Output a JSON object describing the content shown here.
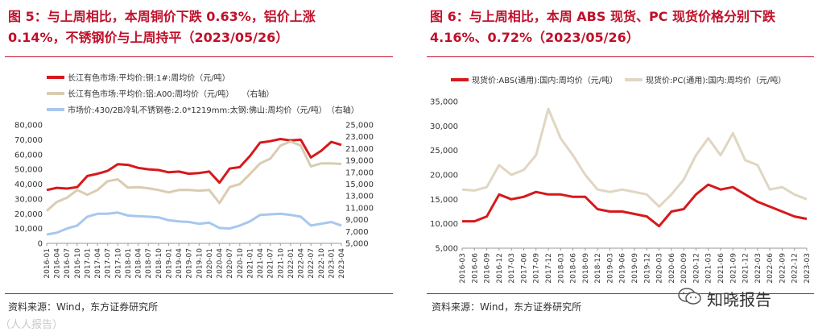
{
  "left": {
    "title_line1": "图 5：与上周相比，本周铜价下跌 0.63%，铝价上涨",
    "title_line2": "0.14%，不锈钢价与上周持平（2023/05/26）",
    "legend": [
      {
        "label": "长江有色市场:平均价:铜:1#:周均价（元/吨）",
        "color": "#d7191c"
      },
      {
        "label": "长江有色市场:平均价:铝:A00:周均价（元/吨）　　（右轴）",
        "color": "#d9ccb2"
      },
      {
        "label": "市场价:430/2B冷轧不锈钢卷:2.0*1219mm:太钢:佛山:周均价（元/吨）　（右轴）",
        "color": "#a7c7ee"
      }
    ],
    "source": "资料来源：Wind，东方证券研究所"
  },
  "right": {
    "title_line1": "图 6：与上周相比，本周 ABS 现货、PC 现货价格分别下跌",
    "title_line2": "4.16%、0.72%（2023/05/26）",
    "legend": [
      {
        "label": "现货价:ABS(通用):国内:周均价（元/吨）",
        "color": "#d7191c"
      },
      {
        "label": "现货价:PC(通用):国内:周均价（元/吨）",
        "color": "#e0d6c2"
      }
    ],
    "source": "资料来源：Wind，东方证券研究所"
  },
  "watermark": "知晓报告",
  "bottom_watermark": "（人人报告）",
  "chart_data": [
    {
      "type": "line",
      "title": "与上周相比，本周铜价下跌 0.63%，铝价上涨0.14%，不锈钢价与上周持平（2023/05/26）",
      "x": [
        "2016-01",
        "2016-04",
        "2016-07",
        "2016-10",
        "2017-01",
        "2017-04",
        "2017-07",
        "2017-10",
        "2018-01",
        "2018-04",
        "2018-07",
        "2018-10",
        "2019-01",
        "2019-04",
        "2019-07",
        "2019-10",
        "2020-01",
        "2020-04",
        "2020-07",
        "2020-10",
        "2021-01",
        "2021-04",
        "2021-07",
        "2021-10",
        "2022-01",
        "2022-04",
        "2022-07",
        "2022-10",
        "2023-01",
        "2023-04"
      ],
      "ylim_left": [
        0,
        80000
      ],
      "yticks_left": [
        "0",
        "10,000",
        "20,000",
        "30,000",
        "40,000",
        "50,000",
        "60,000",
        "70,000",
        "80,000"
      ],
      "ylim_right": [
        5000,
        25000
      ],
      "yticks_right": [
        "5,000",
        "7,000",
        "9,000",
        "11,000",
        "13,000",
        "15,000",
        "17,000",
        "19,000",
        "21,000",
        "23,000",
        "25,000"
      ],
      "series": [
        {
          "name": "长江有色市场:平均价:铜:1#:周均价（元/吨）",
          "axis": "left",
          "color": "#d7191c",
          "values": [
            36000,
            37500,
            37000,
            38000,
            45500,
            47000,
            49000,
            53500,
            53000,
            51000,
            50000,
            49500,
            48000,
            48500,
            47000,
            47500,
            48500,
            41000,
            50500,
            51500,
            59000,
            68000,
            69000,
            70500,
            69500,
            70000,
            58000,
            62500,
            68500,
            66500
          ]
        },
        {
          "name": "长江有色市场:平均价:铝:A00:周均价（元/吨）",
          "axis": "right",
          "color": "#d9ccb2",
          "values": [
            10500,
            12000,
            12700,
            14000,
            13200,
            14000,
            15500,
            15800,
            14400,
            14500,
            14300,
            14000,
            13600,
            14000,
            14000,
            13900,
            14000,
            11800,
            14500,
            15000,
            16700,
            18500,
            19300,
            21500,
            22200,
            21500,
            18000,
            18500,
            18500,
            18400
          ]
        },
        {
          "name": "市场价:430/2B冷轧不锈钢卷:2.0*1219mm:太钢:佛山:周均价（元/吨）",
          "axis": "right",
          "color": "#a7c7ee",
          "values": [
            6500,
            6800,
            7500,
            8000,
            9500,
            10000,
            10000,
            10200,
            9700,
            9600,
            9500,
            9400,
            8900,
            8700,
            8600,
            8300,
            8500,
            7600,
            7500,
            8000,
            8700,
            9800,
            9900,
            10000,
            9800,
            9500,
            8000,
            8300,
            8600,
            8000
          ]
        }
      ]
    },
    {
      "type": "line",
      "title": "与上周相比，本周 ABS 现货、PC 现货价格分别下跌4.16%、0.72%（2023/05/26）",
      "x": [
        "2016-03",
        "2016-06",
        "2016-09",
        "2016-12",
        "2017-03",
        "2017-06",
        "2017-09",
        "2017-12",
        "2018-03",
        "2018-06",
        "2018-09",
        "2018-12",
        "2019-03",
        "2019-06",
        "2019-09",
        "2019-12",
        "2020-03",
        "2020-06",
        "2020-09",
        "2020-12",
        "2021-03",
        "2021-06",
        "2021-09",
        "2021-12",
        "2022-03",
        "2022-06",
        "2022-09",
        "2022-12",
        "2023-03"
      ],
      "ylim": [
        5000,
        35000
      ],
      "yticks": [
        "5,000",
        "10,000",
        "15,000",
        "20,000",
        "25,000",
        "30,000",
        "35,000"
      ],
      "series": [
        {
          "name": "现货价:ABS(通用):国内:周均价（元/吨）",
          "color": "#d7191c",
          "values": [
            10500,
            10500,
            11500,
            16000,
            15000,
            15500,
            16500,
            16000,
            16000,
            15500,
            15500,
            13000,
            12500,
            12500,
            12000,
            11500,
            9500,
            12500,
            13000,
            16000,
            18000,
            17000,
            17500,
            16000,
            14500,
            13500,
            12500,
            11500,
            11000
          ]
        },
        {
          "name": "现货价:PC(通用):国内:周均价（元/吨）",
          "color": "#e0d6c2",
          "values": [
            17000,
            16800,
            17500,
            22000,
            20000,
            21000,
            24000,
            33500,
            27500,
            24000,
            20000,
            17000,
            16500,
            17000,
            16500,
            16000,
            13500,
            16000,
            19000,
            24000,
            27500,
            24000,
            28500,
            23000,
            22000,
            17000,
            17500,
            16000,
            15000
          ]
        }
      ]
    }
  ]
}
